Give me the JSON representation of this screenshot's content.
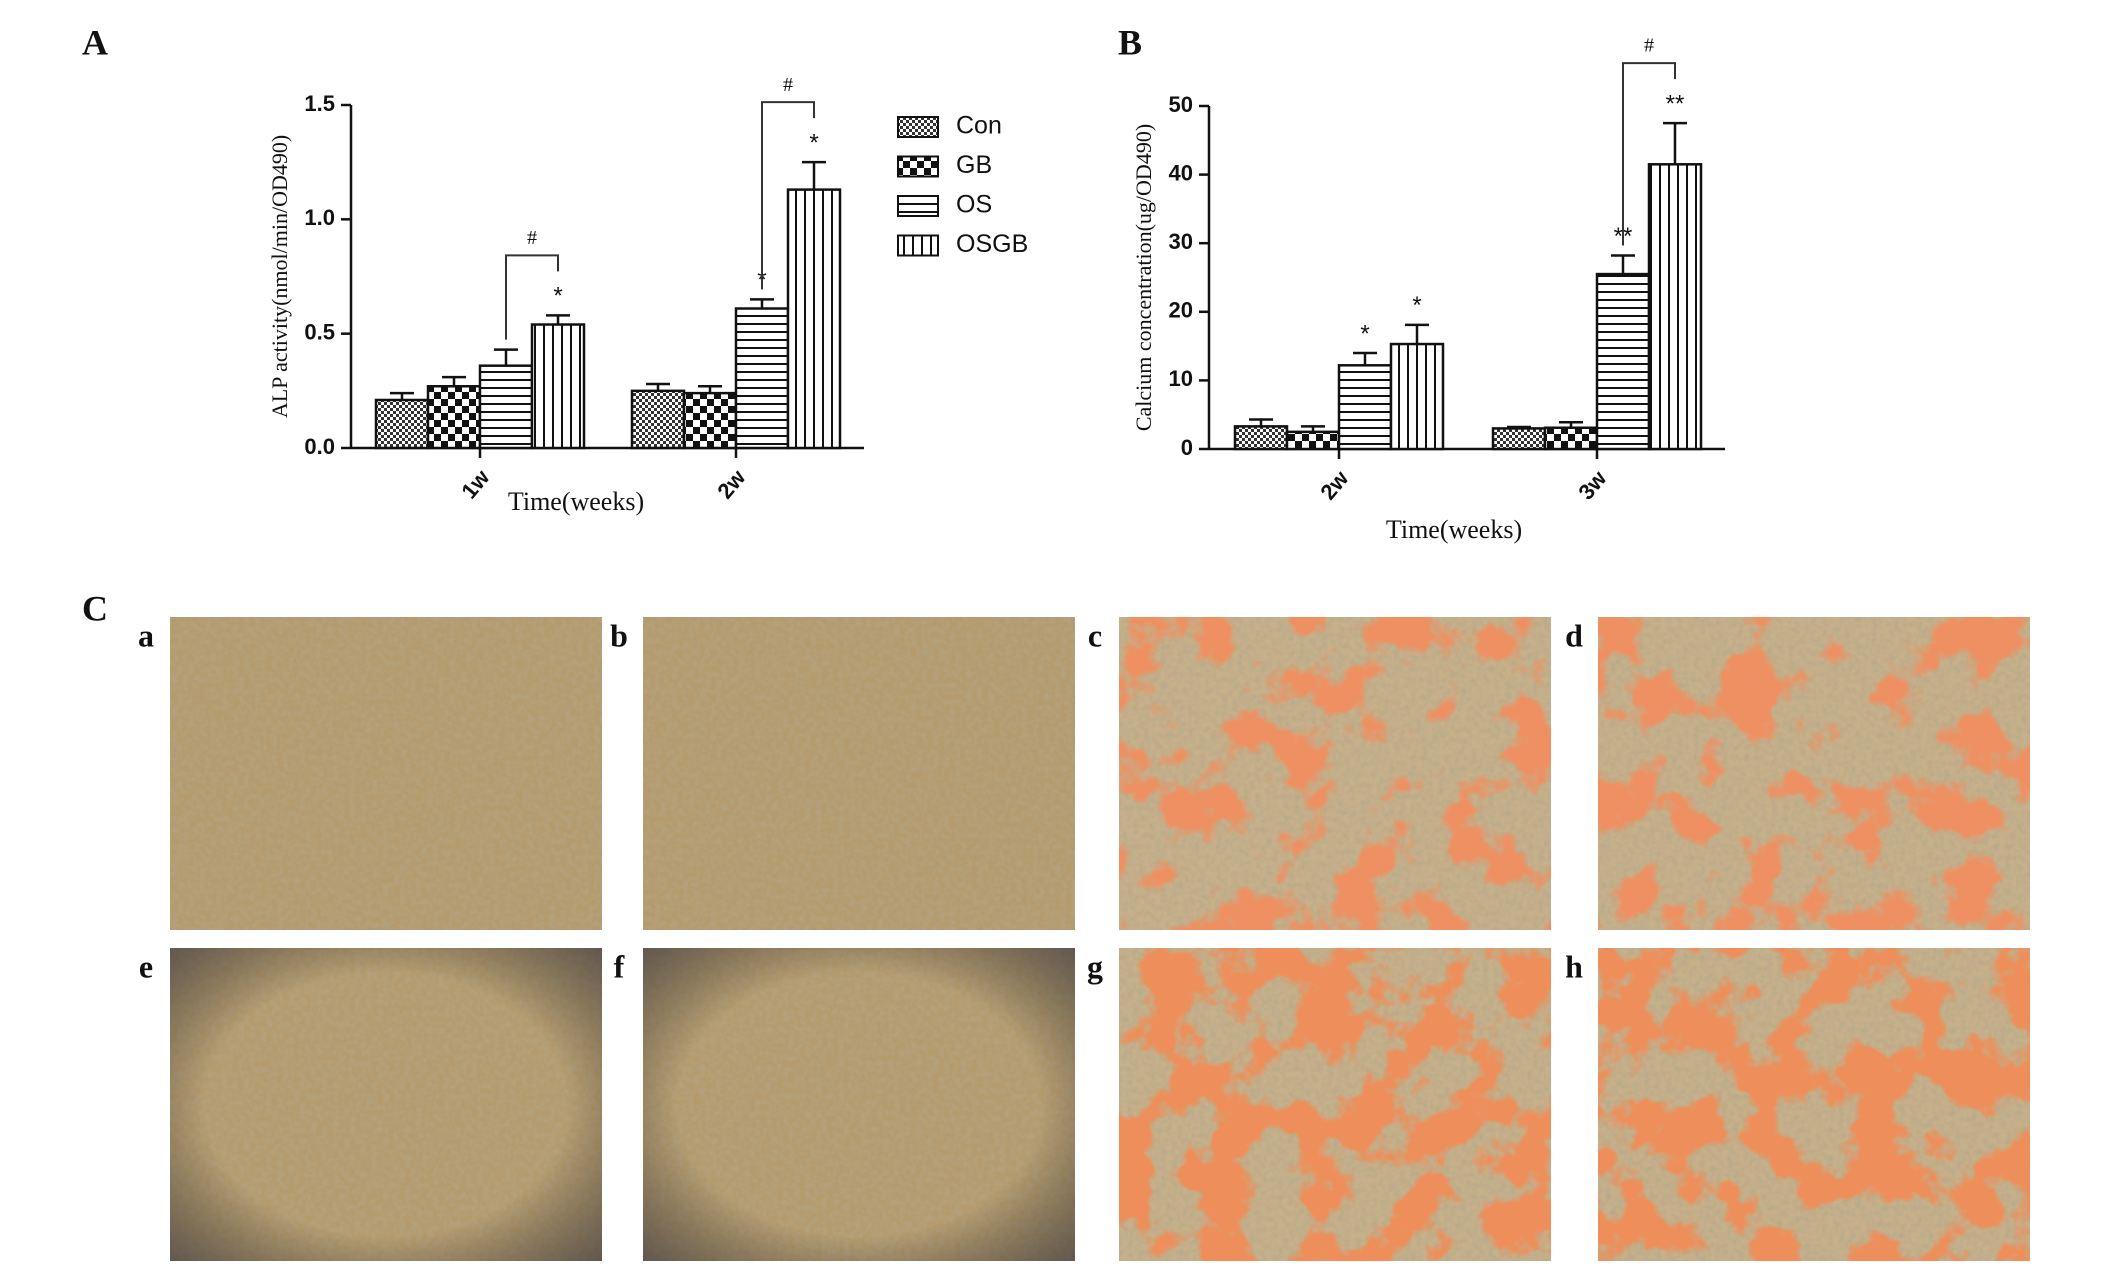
{
  "panel_labels": [
    "A",
    "B",
    "C"
  ],
  "image_labels": [
    "a",
    "b",
    "c",
    "d",
    "e",
    "f",
    "g",
    "h"
  ],
  "chart_data": [
    {
      "type": "bar",
      "ylabel": "ALP activity(nmol/min/OD490)",
      "xlabel": "Time(weeks)",
      "categories": [
        "1w",
        "2w"
      ],
      "ylim": [
        0,
        1.5
      ],
      "yticks": [
        {
          "value": 0,
          "label": "0.0"
        },
        0.5,
        {
          "value": 1,
          "label": "1.0"
        },
        1.5
      ],
      "legend": "right",
      "brackets": [
        "#",
        "#"
      ],
      "series": [
        {
          "name": "Con",
          "pattern": "fine-check",
          "values": [
            0.21,
            0.25
          ],
          "errors": [
            0.03,
            0.03
          ],
          "significance": [
            null,
            null
          ]
        },
        {
          "name": "GB",
          "pattern": "coarse-check",
          "values": [
            0.27,
            0.24
          ],
          "errors": [
            0.04,
            0.03
          ],
          "significance": [
            null,
            null
          ]
        },
        {
          "name": "OS",
          "pattern": "horizontal",
          "values": [
            0.36,
            0.61
          ],
          "errors": [
            0.07,
            0.04
          ],
          "significance": [
            null,
            "*"
          ]
        },
        {
          "name": "OSGB",
          "pattern": "vertical",
          "values": [
            0.54,
            1.13
          ],
          "errors": [
            0.04,
            0.12
          ],
          "significance": [
            "*",
            "*"
          ]
        }
      ]
    },
    {
      "type": "bar",
      "ylabel": "Calcium concentration(ug/OD490)",
      "xlabel": "Time(weeks)",
      "categories": [
        "2w",
        "3w"
      ],
      "ylim": [
        0,
        50
      ],
      "yticks": [
        0,
        10,
        20,
        30,
        40,
        50
      ],
      "brackets": [
        null,
        "#"
      ],
      "series": [
        {
          "pattern": "fine-check",
          "values": [
            3.3,
            3.0
          ],
          "errors": [
            1.0,
            0.2
          ],
          "significance": [
            null,
            null
          ]
        },
        {
          "pattern": "coarse-check",
          "values": [
            2.5,
            3.1
          ],
          "errors": [
            0.8,
            0.8
          ],
          "significance": [
            null,
            null
          ]
        },
        {
          "pattern": "horizontal",
          "values": [
            12.2,
            25.5
          ],
          "errors": [
            1.8,
            2.7
          ],
          "significance": [
            "*",
            "**"
          ]
        },
        {
          "pattern": "vertical",
          "values": [
            15.3,
            41.5
          ],
          "errors": [
            2.8,
            6.0
          ],
          "significance": [
            "*",
            "**"
          ]
        }
      ]
    }
  ]
}
